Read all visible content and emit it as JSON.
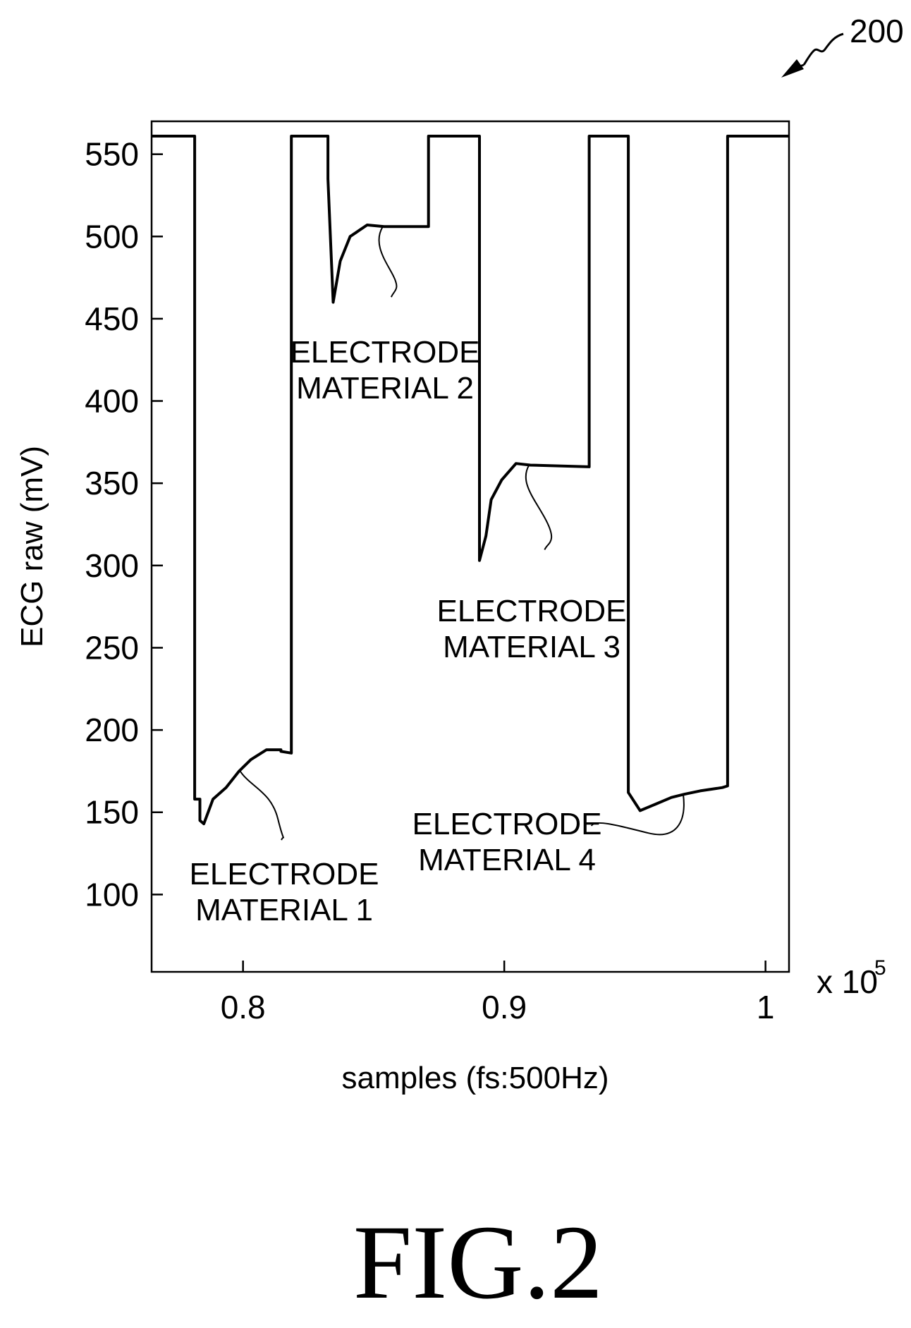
{
  "figure": {
    "reference_number": "200",
    "caption": "FIG.2"
  },
  "chart_data": {
    "type": "line",
    "xlabel": "samples (fs:500Hz)",
    "ylabel": "ECG raw (mV)",
    "x_multiplier": "x 10",
    "x_multiplier_exponent": "5",
    "xlim": [
      0.765,
      1.009
    ],
    "ylim": [
      53,
      570
    ],
    "x_ticks": [
      0.8,
      0.9,
      1.0
    ],
    "x_tick_labels": [
      "0.8",
      "0.9",
      "1"
    ],
    "y_ticks": [
      100,
      150,
      200,
      250,
      300,
      350,
      400,
      450,
      500,
      550
    ],
    "y_tick_labels": [
      "100",
      "150",
      "200",
      "250",
      "300",
      "350",
      "400",
      "450",
      "500",
      "550"
    ],
    "grid": false,
    "series": [
      {
        "x": [
          0.765,
          0.7815,
          0.7815,
          0.7835,
          0.7835,
          0.785,
          0.7885,
          0.7935,
          0.7985,
          0.803,
          0.809,
          0.8145,
          0.8145,
          0.8185,
          0.8185,
          0.8325,
          0.8325,
          0.8345,
          0.8372,
          0.841,
          0.8475,
          0.854,
          0.871,
          0.871,
          0.8905,
          0.8905,
          0.893,
          0.895,
          0.899,
          0.9045,
          0.91,
          0.9325,
          0.9325,
          0.9475,
          0.9475,
          0.952,
          0.958,
          0.964,
          0.969,
          0.975,
          0.9835,
          0.9855,
          0.9855,
          1.009
        ],
        "y": [
          561,
          561,
          158,
          158,
          145,
          143,
          158,
          165,
          175,
          182,
          188,
          188,
          187,
          186,
          561,
          561,
          535,
          460,
          485,
          500,
          507,
          506,
          506,
          561,
          561,
          303,
          318,
          340,
          352,
          362,
          361,
          360,
          561,
          561,
          162,
          151,
          155,
          159,
          161,
          163,
          165,
          166,
          561,
          561
        ]
      }
    ],
    "annotations": [
      {
        "text_line1": "ELECTRODE",
        "text_line2": "MATERIAL 1",
        "target_x": 0.7985,
        "target_y": 176
      },
      {
        "text_line1": "ELECTRODE",
        "text_line2": "MATERIAL 2",
        "target_x": 0.8535,
        "target_y": 506
      },
      {
        "text_line1": "ELECTRODE",
        "text_line2": "MATERIAL 3",
        "target_x": 0.9095,
        "target_y": 361
      },
      {
        "text_line1": "ELECTRODE",
        "text_line2": "MATERIAL 4",
        "target_x": 0.9685,
        "target_y": 161
      }
    ]
  }
}
